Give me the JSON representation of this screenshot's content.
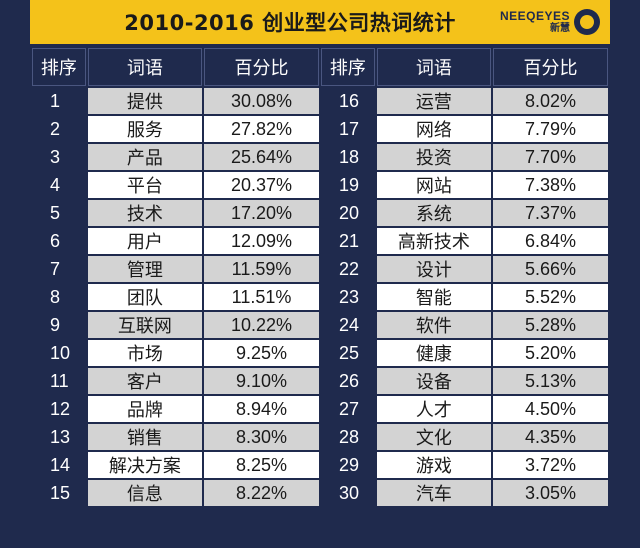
{
  "title": "2010-2016 创业型公司热词统计",
  "brand": {
    "en": "NEEQEYES",
    "cn": "新慧"
  },
  "headers": [
    "排序",
    "词语",
    "百分比",
    "排序",
    "词语",
    "百分比"
  ],
  "rows": [
    {
      "rank_a": "1",
      "word_a": "提供",
      "pct_a": "30.08%",
      "rank_b": "16",
      "word_b": "运营",
      "pct_b": "8.02%"
    },
    {
      "rank_a": "2",
      "word_a": "服务",
      "pct_a": "27.82%",
      "rank_b": "17",
      "word_b": "网络",
      "pct_b": "7.79%"
    },
    {
      "rank_a": "3",
      "word_a": "产品",
      "pct_a": "25.64%",
      "rank_b": "18",
      "word_b": "投资",
      "pct_b": "7.70%"
    },
    {
      "rank_a": "4",
      "word_a": "平台",
      "pct_a": "20.37%",
      "rank_b": "19",
      "word_b": "网站",
      "pct_b": "7.38%"
    },
    {
      "rank_a": "5",
      "word_a": "技术",
      "pct_a": "17.20%",
      "rank_b": "20",
      "word_b": "系统",
      "pct_b": "7.37%"
    },
    {
      "rank_a": "6",
      "word_a": "用户",
      "pct_a": "12.09%",
      "rank_b": "21",
      "word_b": "高新技术",
      "pct_b": "6.84%"
    },
    {
      "rank_a": "7",
      "word_a": "管理",
      "pct_a": "11.59%",
      "rank_b": "22",
      "word_b": "设计",
      "pct_b": "5.66%"
    },
    {
      "rank_a": "8",
      "word_a": "团队",
      "pct_a": "11.51%",
      "rank_b": "23",
      "word_b": "智能",
      "pct_b": "5.52%"
    },
    {
      "rank_a": "9",
      "word_a": "互联网",
      "pct_a": "10.22%",
      "rank_b": "24",
      "word_b": "软件",
      "pct_b": "5.28%"
    },
    {
      "rank_a": "10",
      "word_a": "市场",
      "pct_a": "9.25%",
      "rank_b": "25",
      "word_b": "健康",
      "pct_b": "5.20%"
    },
    {
      "rank_a": "11",
      "word_a": "客户",
      "pct_a": "9.10%",
      "rank_b": "26",
      "word_b": "设备",
      "pct_b": "5.13%"
    },
    {
      "rank_a": "12",
      "word_a": "品牌",
      "pct_a": "8.94%",
      "rank_b": "27",
      "word_b": "人才",
      "pct_b": "4.50%"
    },
    {
      "rank_a": "13",
      "word_a": "销售",
      "pct_a": "8.30%",
      "rank_b": "28",
      "word_b": "文化",
      "pct_b": "4.35%"
    },
    {
      "rank_a": "14",
      "word_a": "解决方案",
      "pct_a": "8.25%",
      "rank_b": "29",
      "word_b": "游戏",
      "pct_b": "3.72%"
    },
    {
      "rank_a": "15",
      "word_a": "信息",
      "pct_a": "8.22%",
      "rank_b": "30",
      "word_b": "汽车",
      "pct_b": "3.05%"
    }
  ]
}
